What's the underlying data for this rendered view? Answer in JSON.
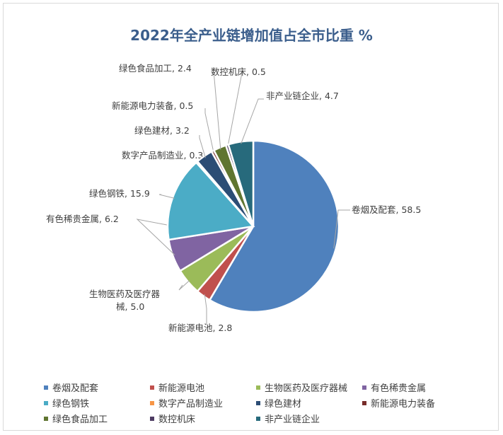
{
  "chart_data": {
    "type": "pie",
    "title": "2022年全产业链增加值占全市比重 %",
    "start_angle": "12 o'clock",
    "direction": "clockwise",
    "legend_position": "bottom",
    "slices": [
      {
        "name": "卷烟及配套",
        "value": 58.5,
        "label": "卷烟及配套, 58.5",
        "color": "#4f81bd"
      },
      {
        "name": "新能源电池",
        "value": 2.8,
        "label": "新能源电池, 2.8",
        "color": "#c0504d"
      },
      {
        "name": "生物医药及医疗器械",
        "value": 5.0,
        "label_lines": [
          "生物医药及医疗器",
          "械, 5.0"
        ],
        "color": "#9bbb59"
      },
      {
        "name": "有色稀贵金属",
        "value": 6.2,
        "label": "有色稀贵金属, 6.2",
        "color": "#8064a2"
      },
      {
        "name": "绿色钢铁",
        "value": 15.9,
        "label": "绿色钢铁, 15.9",
        "color": "#4bacc6"
      },
      {
        "name": "数字产品制造业",
        "value": 0.3,
        "label": "数字产品制造业, 0.3",
        "color": "#f79646"
      },
      {
        "name": "绿色建材",
        "value": 3.2,
        "label": "绿色建材, 3.2",
        "color": "#2c4d75"
      },
      {
        "name": "新能源电力装备",
        "value": 0.5,
        "label": "新能源电力装备, 0.5",
        "color": "#772c2a"
      },
      {
        "name": "绿色食品加工",
        "value": 2.4,
        "label": "绿色食品加工, 2.4",
        "color": "#5f7530"
      },
      {
        "name": "数控机床",
        "value": 0.5,
        "label": "数控机床, 0.5",
        "color": "#4d3b62"
      },
      {
        "name": "非产业链企业",
        "value": 4.7,
        "label": "非产业链企业, 4.7",
        "color": "#276a7c"
      }
    ]
  }
}
